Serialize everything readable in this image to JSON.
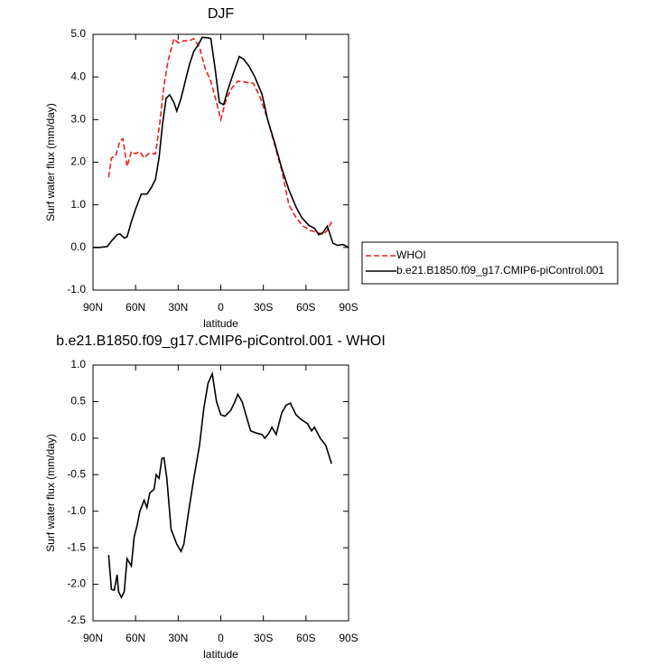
{
  "chart_data": [
    {
      "type": "line",
      "title": "DJF",
      "x_label": "latitude",
      "y_label": "Surf water flux (mm/day)",
      "xlim": [
        90,
        -90
      ],
      "ylim": [
        -1,
        5
      ],
      "xticks": [
        {
          "value": 90,
          "label": "90N"
        },
        {
          "value": 60,
          "label": "60N"
        },
        {
          "value": 30,
          "label": "30N"
        },
        0,
        {
          "value": -30,
          "label": "30S"
        },
        {
          "value": -60,
          "label": "60S"
        },
        {
          "value": -90,
          "label": "90S"
        }
      ],
      "yticks": [
        {
          "value": -1,
          "label": "-1.0"
        },
        {
          "value": 0,
          "label": "0.0"
        },
        {
          "value": 1,
          "label": "1.0"
        },
        {
          "value": 2,
          "label": "2.0"
        },
        {
          "value": 3,
          "label": "3.0"
        },
        {
          "value": 4,
          "label": "4.0"
        },
        {
          "value": 5,
          "label": "5.0"
        }
      ],
      "legend": "outside right",
      "series": [
        {
          "name": "WHOI",
          "color": "#e8201c",
          "dash": true,
          "x": [
            79,
            77,
            74,
            71,
            69,
            66,
            63,
            60,
            57,
            54,
            51,
            46,
            43,
            40,
            37,
            33,
            30,
            26,
            22,
            19,
            15,
            11,
            7,
            3,
            0,
            -4,
            -8,
            -12,
            -17,
            -23,
            -28,
            -33,
            -38,
            -43,
            -48,
            -53,
            -58,
            -63,
            -68,
            -72,
            -75,
            -78
          ],
          "values": [
            1.65,
            2.1,
            2.15,
            2.5,
            2.55,
            1.9,
            2.25,
            2.2,
            2.25,
            2.1,
            2.2,
            2.2,
            2.9,
            3.8,
            4.4,
            4.9,
            4.8,
            4.85,
            4.85,
            4.9,
            4.7,
            4.2,
            3.9,
            3.4,
            3.0,
            3.5,
            3.75,
            3.9,
            3.88,
            3.85,
            3.5,
            3.0,
            2.4,
            1.8,
            1.0,
            0.7,
            0.5,
            0.4,
            0.35,
            0.3,
            0.4,
            0.6
          ]
        },
        {
          "name": "b.e21.B1850.f09_g17.CMIP6-piControl.001",
          "color": "#000000",
          "dash": false,
          "x": [
            90,
            85.5,
            80,
            77,
            73,
            71,
            68,
            66,
            63,
            60,
            56,
            52,
            49,
            46,
            43.5,
            41,
            38.5,
            36,
            33,
            31,
            28,
            25,
            22,
            19,
            16,
            13,
            9,
            7,
            4,
            1,
            -2,
            -5,
            -9,
            -13,
            -16,
            -20,
            -24,
            -29,
            -33,
            -38,
            -43,
            -48,
            -53,
            -57,
            -62,
            -66,
            -69,
            -72,
            -75,
            -79,
            -82,
            -86,
            -90
          ],
          "values": [
            0.0,
            0.0,
            0.02,
            0.15,
            0.3,
            0.32,
            0.22,
            0.25,
            0.6,
            0.9,
            1.25,
            1.25,
            1.4,
            1.6,
            2.1,
            2.9,
            3.5,
            3.58,
            3.4,
            3.2,
            3.5,
            3.9,
            4.3,
            4.6,
            4.75,
            4.93,
            4.92,
            4.9,
            4.2,
            3.4,
            3.35,
            3.7,
            4.1,
            4.48,
            4.42,
            4.25,
            4.0,
            3.6,
            3.0,
            2.45,
            1.85,
            1.35,
            0.95,
            0.7,
            0.52,
            0.45,
            0.3,
            0.35,
            0.5,
            0.1,
            0.05,
            0.07,
            0.0
          ]
        }
      ]
    },
    {
      "type": "line",
      "title": "b.e21.B1850.f09_g17.CMIP6-piControl.001 - WHOI",
      "x_label": "latitude",
      "y_label": "Surf water flux (mm/day)",
      "xlim": [
        90,
        -90
      ],
      "ylim": [
        -2.5,
        1
      ],
      "xticks": [
        {
          "value": 90,
          "label": "90N"
        },
        {
          "value": 60,
          "label": "60N"
        },
        {
          "value": 30,
          "label": "30N"
        },
        0,
        {
          "value": -30,
          "label": "30S"
        },
        {
          "value": -60,
          "label": "60S"
        },
        {
          "value": -90,
          "label": "90S"
        }
      ],
      "yticks": [
        -2.5,
        {
          "value": -2,
          "label": "-2.0"
        },
        -1.5,
        {
          "value": -1,
          "label": "-1.0"
        },
        -0.5,
        {
          "value": 0,
          "label": "0.0"
        },
        0.5,
        {
          "value": 1,
          "label": "1.0"
        }
      ],
      "series": [
        {
          "color": "#000000",
          "dash": false,
          "x": [
            79,
            77,
            75,
            73,
            72,
            70,
            68,
            66,
            63,
            61,
            59,
            57,
            54,
            52,
            50,
            47,
            45.5,
            43.5,
            41.5,
            40,
            38,
            35,
            31,
            28,
            26,
            23,
            19,
            15,
            12,
            9,
            6,
            3,
            0,
            -3,
            -7,
            -10,
            -12,
            -15,
            -18,
            -21,
            -25,
            -29,
            -31,
            -34,
            -36,
            -39,
            -43,
            -46,
            -49,
            -53,
            -57,
            -61,
            -64,
            -66,
            -70,
            -74,
            -78
          ],
          "values": [
            -1.6,
            -2.07,
            -2.08,
            -1.87,
            -2.1,
            -2.18,
            -2.1,
            -1.65,
            -1.75,
            -1.35,
            -1.2,
            -1.0,
            -0.85,
            -0.95,
            -0.75,
            -0.7,
            -0.5,
            -0.55,
            -0.28,
            -0.27,
            -0.55,
            -1.25,
            -1.45,
            -1.55,
            -1.45,
            -1.05,
            -0.55,
            -0.1,
            0.4,
            0.75,
            0.88,
            0.5,
            0.32,
            0.3,
            0.38,
            0.5,
            0.6,
            0.5,
            0.3,
            0.1,
            0.07,
            0.05,
            0.0,
            0.07,
            0.15,
            0.05,
            0.35,
            0.45,
            0.48,
            0.32,
            0.25,
            0.2,
            0.1,
            0.15,
            0.0,
            -0.1,
            -0.35
          ]
        }
      ]
    }
  ]
}
